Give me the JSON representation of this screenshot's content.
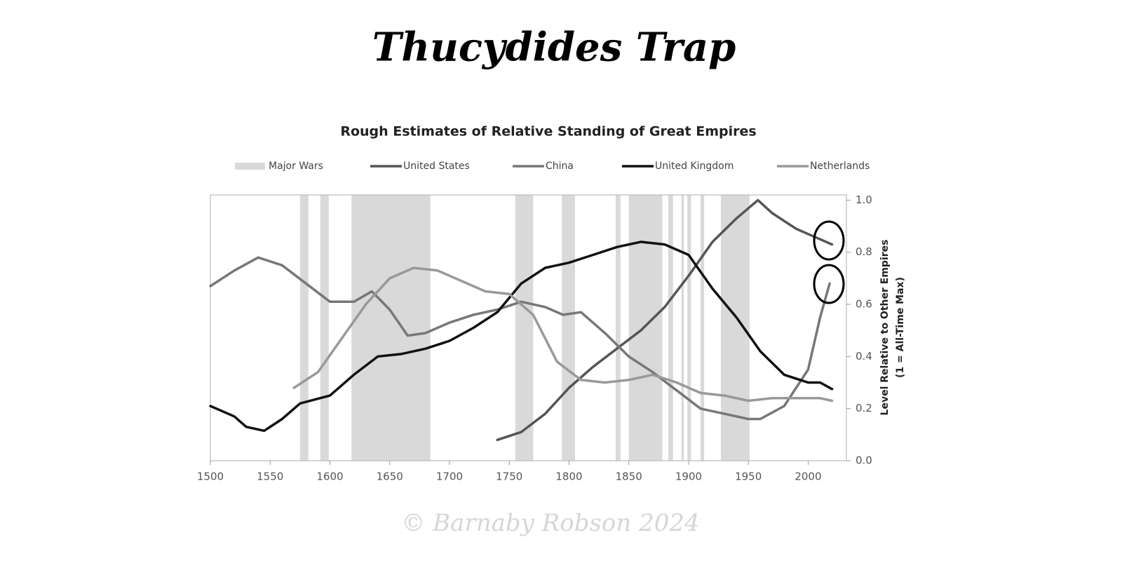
{
  "header": {
    "title": "Thucydides Trap"
  },
  "chart_data": {
    "type": "line",
    "title": "Rough Estimates of Relative Standing of Great Empires",
    "ylabel": "Level Relative to Other Empires",
    "ylabel_note": "(1 = All-Time Max)",
    "xlim": [
      1500,
      2032
    ],
    "ylim": [
      0,
      1.02
    ],
    "xticks": [
      1500,
      1550,
      1600,
      1650,
      1700,
      1750,
      1800,
      1850,
      1900,
      1950,
      2000
    ],
    "yticks": [
      {
        "value": 0,
        "label": "0.0"
      },
      0.2,
      0.4,
      0.6,
      0.8,
      {
        "value": 1,
        "label": "1.0"
      }
    ],
    "bands": {
      "name": "Major Wars",
      "color": "#d9d9d9",
      "ranges": [
        [
          1575,
          1582
        ],
        [
          1592,
          1599
        ],
        [
          1618,
          1684
        ],
        [
          1755,
          1770
        ],
        [
          1794,
          1805
        ],
        [
          1839,
          1843
        ],
        [
          1850,
          1878
        ],
        [
          1883,
          1887
        ],
        [
          1894,
          1896
        ],
        [
          1899,
          1902
        ],
        [
          1910,
          1913
        ],
        [
          1927,
          1951
        ]
      ]
    },
    "series": [
      {
        "name": "United States",
        "color": "#555555",
        "x": [
          1740,
          1760,
          1780,
          1800,
          1820,
          1840,
          1860,
          1880,
          1900,
          1920,
          1940,
          1958,
          1970,
          1990,
          2010,
          2020
        ],
        "values": [
          0.08,
          0.11,
          0.18,
          0.28,
          0.36,
          0.43,
          0.5,
          0.59,
          0.71,
          0.84,
          0.93,
          1.0,
          0.95,
          0.89,
          0.85,
          0.83
        ]
      },
      {
        "name": "China",
        "color": "#777777",
        "x": [
          1500,
          1520,
          1540,
          1560,
          1580,
          1600,
          1620,
          1635,
          1650,
          1665,
          1680,
          1700,
          1720,
          1740,
          1760,
          1780,
          1795,
          1810,
          1830,
          1850,
          1870,
          1890,
          1910,
          1930,
          1950,
          1960,
          1980,
          2000,
          2010,
          2018
        ],
        "values": [
          0.67,
          0.73,
          0.78,
          0.75,
          0.68,
          0.61,
          0.61,
          0.65,
          0.58,
          0.48,
          0.49,
          0.53,
          0.56,
          0.58,
          0.61,
          0.59,
          0.56,
          0.57,
          0.49,
          0.4,
          0.34,
          0.27,
          0.2,
          0.18,
          0.16,
          0.16,
          0.21,
          0.35,
          0.55,
          0.68
        ]
      },
      {
        "name": "United Kingdom",
        "color": "#111111",
        "x": [
          1500,
          1520,
          1530,
          1545,
          1560,
          1575,
          1600,
          1620,
          1640,
          1660,
          1680,
          1700,
          1720,
          1740,
          1760,
          1780,
          1800,
          1820,
          1840,
          1860,
          1880,
          1900,
          1920,
          1940,
          1960,
          1980,
          2000,
          2010,
          2020
        ],
        "values": [
          0.21,
          0.17,
          0.13,
          0.115,
          0.16,
          0.22,
          0.25,
          0.33,
          0.4,
          0.41,
          0.43,
          0.46,
          0.51,
          0.57,
          0.68,
          0.74,
          0.76,
          0.79,
          0.82,
          0.84,
          0.83,
          0.79,
          0.66,
          0.55,
          0.42,
          0.33,
          0.3,
          0.3,
          0.275
        ]
      },
      {
        "name": "Netherlands",
        "color": "#999999",
        "x": [
          1570,
          1590,
          1610,
          1630,
          1650,
          1670,
          1690,
          1710,
          1730,
          1750,
          1770,
          1790,
          1810,
          1830,
          1850,
          1870,
          1890,
          1910,
          1930,
          1950,
          1970,
          1990,
          2010,
          2020
        ],
        "values": [
          0.28,
          0.34,
          0.47,
          0.6,
          0.7,
          0.74,
          0.73,
          0.69,
          0.65,
          0.64,
          0.56,
          0.38,
          0.31,
          0.3,
          0.31,
          0.33,
          0.3,
          0.26,
          0.25,
          0.23,
          0.24,
          0.24,
          0.24,
          0.23
        ]
      }
    ]
  },
  "footer": {
    "text": "© Barnaby Robson 2024"
  }
}
